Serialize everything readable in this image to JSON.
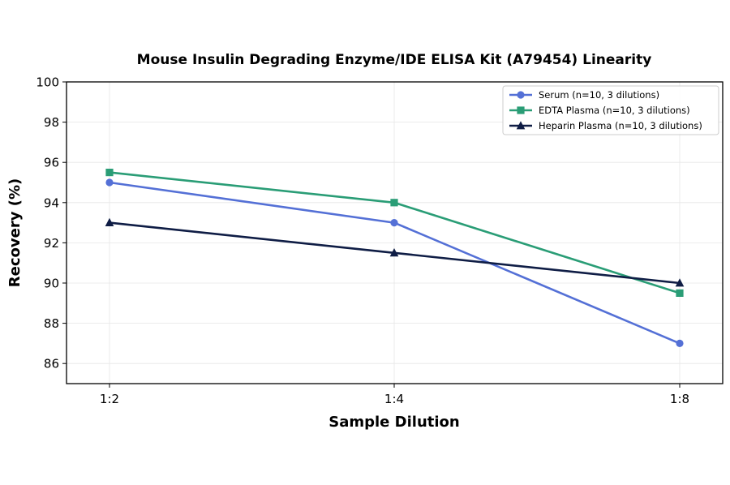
{
  "chart_data": {
    "type": "line",
    "title": "Mouse Insulin Degrading Enzyme/IDE ELISA Kit (A79454) Linearity",
    "xlabel": "Sample Dilution",
    "ylabel": "Recovery (%)",
    "categories": [
      "1:2",
      "1:4",
      "1:8"
    ],
    "ylim": [
      85,
      100
    ],
    "yticks": [
      86,
      88,
      90,
      92,
      94,
      96,
      98,
      100
    ],
    "grid": true,
    "legend_position": "top-right",
    "series": [
      {
        "name": "Serum (n=10, 3 dilutions)",
        "values": [
          95.0,
          93.0,
          87.0
        ],
        "color": "#5470d6",
        "marker": "circle"
      },
      {
        "name": "EDTA Plasma (n=10, 3 dilutions)",
        "values": [
          95.5,
          94.0,
          89.5
        ],
        "color": "#2a9d76",
        "marker": "square"
      },
      {
        "name": "Heparin Plasma (n=10, 3 dilutions)",
        "values": [
          93.0,
          91.5,
          90.0
        ],
        "color": "#0f1d45",
        "marker": "triangle"
      }
    ]
  }
}
